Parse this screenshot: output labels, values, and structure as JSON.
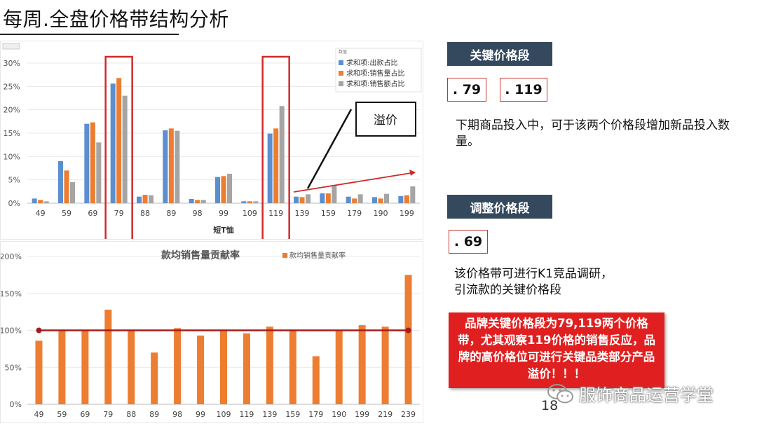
{
  "page_title": "每周.全盘价格带结构分析",
  "chart_data": [
    {
      "type": "bar",
      "title": "",
      "xlabel": "短T恤",
      "ylabel": "",
      "ylim": [
        0,
        30
      ],
      "yticks": [
        "0%",
        "5%",
        "10%",
        "15%",
        "20%",
        "25%",
        "30%"
      ],
      "categories": [
        "49",
        "59",
        "69",
        "79",
        "88",
        "89",
        "98",
        "99",
        "109",
        "119",
        "139",
        "159",
        "179",
        "190",
        "199"
      ],
      "series": [
        {
          "name": "求和项:出款占比",
          "color": "#5b8fd0",
          "values": [
            1.0,
            9.0,
            17.0,
            25.6,
            1.4,
            15.6,
            0.9,
            5.6,
            0.4,
            14.9,
            1.4,
            2.1,
            1.4,
            1.3,
            1.5
          ]
        },
        {
          "name": "求和项:销售量占比",
          "color": "#ed7d31",
          "values": [
            0.7,
            7.0,
            17.3,
            26.8,
            1.8,
            16.0,
            0.7,
            5.8,
            0.4,
            16.0,
            1.3,
            2.1,
            1.0,
            1.0,
            1.7
          ]
        },
        {
          "name": "求和项:销售额占比",
          "color": "#a5a5a5",
          "values": [
            0.4,
            4.5,
            13.0,
            23.0,
            1.7,
            15.5,
            0.7,
            6.3,
            0.4,
            20.8,
            1.9,
            3.9,
            1.9,
            2.0,
            3.6
          ]
        }
      ],
      "legend_title": "数值",
      "legend_position": "top-right",
      "highlight_categories": [
        "79",
        "119"
      ],
      "annotation": "溢价",
      "grid": true
    },
    {
      "type": "bar",
      "title": "款均销售量贡献率",
      "xlabel": "",
      "ylabel": "",
      "ylim": [
        0,
        200
      ],
      "yticks": [
        "0%",
        "50%",
        "100%",
        "150%",
        "200%"
      ],
      "categories": [
        "49",
        "59",
        "69",
        "79",
        "88",
        "89",
        "98",
        "99",
        "109",
        "119",
        "139",
        "159",
        "179",
        "190",
        "199",
        "219",
        "239"
      ],
      "series": [
        {
          "name": "款均销售量贡献率",
          "color": "#ed7d31",
          "values": [
            86,
            101,
            100,
            128,
            100,
            70,
            103,
            93,
            101,
            96,
            105,
            101,
            65,
            99,
            107,
            105,
            175
          ]
        }
      ],
      "reference_line": 100,
      "reference_color": "#a51c1c",
      "legend_position": "top",
      "grid": true
    }
  ],
  "right_panel": {
    "key_header": "关键价格段",
    "key_values": [
      ". 79",
      ". 119"
    ],
    "key_desc": "下期商品投入中，可于该两个价格段增加新品投入数量。",
    "adjust_header": "调整价格段",
    "adjust_values": [
      ". 69"
    ],
    "adjust_desc_line1": "该价格带可进行K1竞品调研，",
    "adjust_desc_line2": "引流款的关键价格段",
    "note": "品牌关键价格段为79,119两个价格带，尤其观察119价格的销售反应，品牌的高价格位可进行关键品类部分产品溢价！！！"
  },
  "page_number": "18",
  "watermark": "服饰商品运营学堂",
  "colors": {
    "accent_dark": "#34495e",
    "highlight_red": "#c8332d",
    "note_red": "#e02020"
  }
}
